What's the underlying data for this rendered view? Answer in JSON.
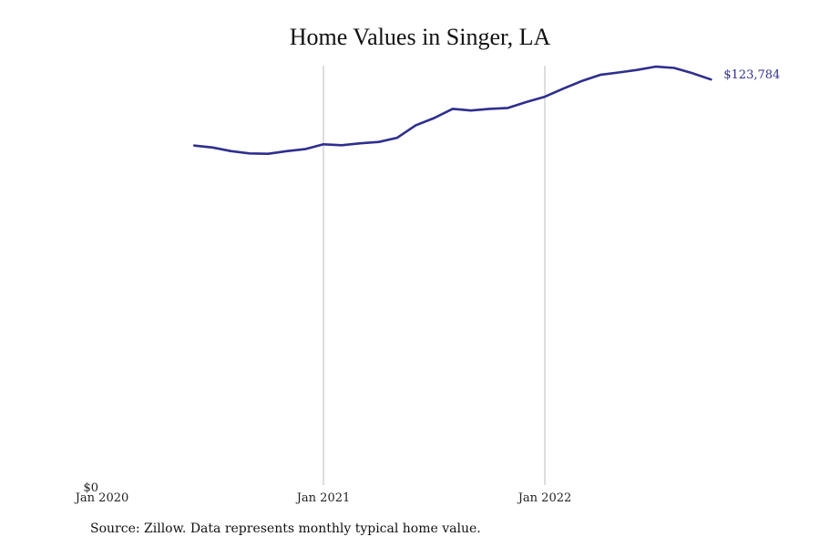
{
  "chart_data": {
    "type": "line",
    "title": "Home Values in Singer, LA",
    "source": "Source: Zillow. Data represents monthly typical home value.",
    "line_color": "#2e2e8f",
    "grid_color": "#bbbbbb",
    "x_ticks": [
      {
        "label": "Jan 2020",
        "date": "2020-01"
      },
      {
        "label": "Jan 2021",
        "date": "2021-01"
      },
      {
        "label": "Jan 2022",
        "date": "2022-01"
      }
    ],
    "x_range": [
      "2020-01",
      "2022-12"
    ],
    "vertical_gridlines_at": [
      "2021-01",
      "2022-01"
    ],
    "y_ticks": [
      {
        "label": "$0",
        "value": 0
      }
    ],
    "ylim": [
      0,
      128000
    ],
    "end_label": "$123,784",
    "series": [
      {
        "x": [
          "2020-06",
          "2020-07",
          "2020-08",
          "2020-09",
          "2020-10",
          "2020-11",
          "2020-12",
          "2021-01",
          "2021-02",
          "2021-03",
          "2021-04",
          "2021-05",
          "2021-06",
          "2021-07",
          "2021-08",
          "2021-09",
          "2021-10",
          "2021-11",
          "2021-12",
          "2022-01",
          "2022-02",
          "2022-03",
          "2022-04",
          "2022-05",
          "2022-06",
          "2022-07",
          "2022-08",
          "2022-09",
          "2022-10"
        ],
        "y": [
          103600,
          103000,
          101900,
          101200,
          101100,
          101900,
          102500,
          104000,
          103700,
          104300,
          104700,
          106000,
          109800,
          112000,
          114800,
          114300,
          114800,
          115100,
          116900,
          118500,
          121000,
          123300,
          125200,
          125900,
          126700,
          127700,
          127300,
          125700,
          123784
        ]
      }
    ]
  }
}
